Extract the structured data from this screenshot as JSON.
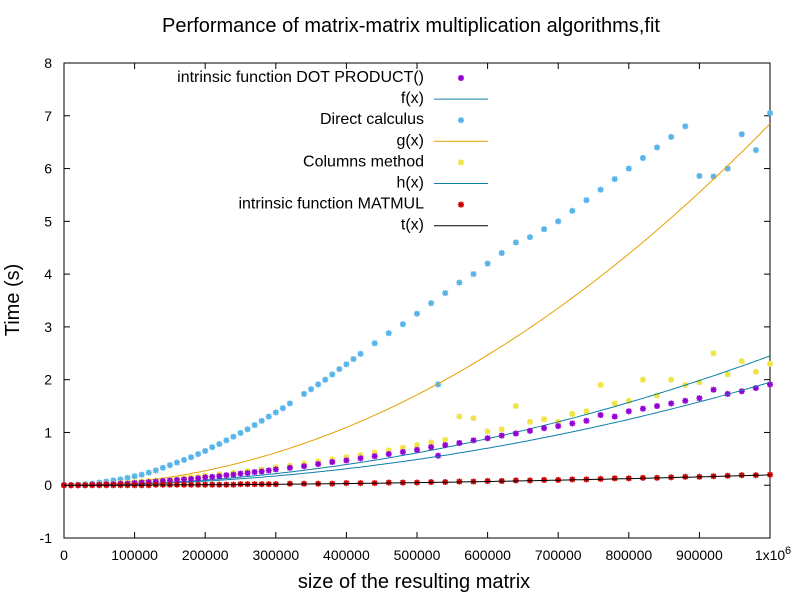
{
  "chart_data": {
    "type": "scatter",
    "title": "Performance of matrix-matrix multiplication algorithms,fit",
    "xlabel": "size of the resulting matrix",
    "ylabel": "Time (s)",
    "xlim": [
      0,
      1000000
    ],
    "ylim": [
      -1,
      8
    ],
    "x_ticks": [
      0,
      100000,
      200000,
      300000,
      400000,
      500000,
      600000,
      700000,
      800000,
      900000,
      1000000
    ],
    "x_tick_labels": [
      "0",
      "100000",
      "200000",
      "300000",
      "400000",
      "500000",
      "600000",
      "700000",
      "800000",
      "900000",
      "1x10"
    ],
    "x_exponent_label": "6",
    "y_ticks": [
      -1,
      0,
      1,
      2,
      3,
      4,
      5,
      6,
      7,
      8
    ],
    "y_tick_labels": [
      "-1",
      "0",
      "1",
      "2",
      "3",
      "4",
      "5",
      "6",
      "7",
      "8"
    ],
    "grid": false,
    "legend_position": "top-left",
    "series": [
      {
        "name": "intrinsic function DOT PRODUCT()",
        "kind": "points",
        "color": "#9400d3",
        "x": [
          0,
          10000,
          20000,
          30000,
          40000,
          50000,
          60000,
          70000,
          80000,
          90000,
          100000,
          110000,
          120000,
          130000,
          140000,
          150000,
          160000,
          170000,
          180000,
          190000,
          200000,
          210000,
          220000,
          230000,
          240000,
          250000,
          260000,
          270000,
          280000,
          290000,
          300000,
          320000,
          340000,
          360000,
          380000,
          400000,
          420000,
          440000,
          460000,
          480000,
          500000,
          520000,
          530000,
          540000,
          560000,
          580000,
          600000,
          620000,
          640000,
          660000,
          680000,
          700000,
          720000,
          740000,
          760000,
          780000,
          800000,
          820000,
          840000,
          860000,
          880000,
          900000,
          920000,
          940000,
          960000,
          980000,
          1000000
        ],
        "y": [
          0.0,
          0.0,
          0.0,
          0.0,
          0.01,
          0.01,
          0.02,
          0.02,
          0.03,
          0.03,
          0.04,
          0.05,
          0.06,
          0.07,
          0.08,
          0.09,
          0.1,
          0.11,
          0.12,
          0.13,
          0.15,
          0.16,
          0.17,
          0.19,
          0.2,
          0.22,
          0.23,
          0.25,
          0.26,
          0.28,
          0.3,
          0.33,
          0.36,
          0.4,
          0.44,
          0.47,
          0.51,
          0.55,
          0.59,
          0.63,
          0.67,
          0.72,
          0.56,
          0.76,
          0.8,
          0.85,
          0.89,
          0.94,
          0.98,
          1.03,
          1.08,
          1.12,
          1.17,
          1.22,
          1.33,
          1.3,
          1.4,
          1.45,
          1.5,
          1.55,
          1.6,
          1.65,
          1.81,
          1.73,
          1.78,
          1.84,
          1.91
        ]
      },
      {
        "name": "f(x)",
        "kind": "curve",
        "color": "#0d80a8",
        "a": 1.95e-12
      },
      {
        "name": "Direct calculus",
        "kind": "points",
        "color": "#56b4e9",
        "x": [
          0,
          10000,
          20000,
          30000,
          40000,
          50000,
          60000,
          70000,
          80000,
          90000,
          100000,
          110000,
          120000,
          130000,
          140000,
          150000,
          160000,
          170000,
          180000,
          190000,
          200000,
          210000,
          220000,
          230000,
          240000,
          250000,
          260000,
          270000,
          280000,
          290000,
          300000,
          310000,
          320000,
          340000,
          350000,
          360000,
          370000,
          380000,
          390000,
          400000,
          410000,
          420000,
          440000,
          460000,
          480000,
          500000,
          520000,
          530000,
          540000,
          560000,
          580000,
          600000,
          620000,
          640000,
          660000,
          680000,
          700000,
          720000,
          740000,
          760000,
          780000,
          800000,
          820000,
          840000,
          860000,
          880000,
          900000,
          920000,
          940000,
          960000,
          980000,
          1000000
        ],
        "y": [
          0.0,
          0.0,
          0.01,
          0.02,
          0.03,
          0.05,
          0.07,
          0.09,
          0.11,
          0.14,
          0.17,
          0.2,
          0.24,
          0.28,
          0.33,
          0.38,
          0.43,
          0.48,
          0.53,
          0.59,
          0.65,
          0.72,
          0.78,
          0.85,
          0.92,
          0.99,
          1.06,
          1.14,
          1.22,
          1.3,
          1.38,
          1.46,
          1.55,
          1.73,
          1.82,
          1.91,
          2.0,
          2.1,
          2.2,
          2.29,
          2.39,
          2.49,
          2.69,
          2.88,
          3.05,
          3.25,
          3.45,
          1.91,
          3.64,
          3.84,
          4.0,
          4.2,
          4.4,
          4.6,
          4.7,
          4.85,
          5.0,
          5.2,
          5.4,
          5.6,
          5.8,
          6.0,
          6.2,
          6.4,
          6.6,
          6.8,
          5.86,
          5.85,
          6.0,
          6.65,
          6.35,
          7.05
        ]
      },
      {
        "name": "g(x)",
        "kind": "curve",
        "color": "#e69f00",
        "a": 6.85e-12
      },
      {
        "name": "Columns method",
        "kind": "points",
        "color": "#f0e442",
        "x": [
          0,
          10000,
          20000,
          30000,
          40000,
          50000,
          60000,
          70000,
          80000,
          90000,
          100000,
          110000,
          120000,
          130000,
          140000,
          150000,
          160000,
          170000,
          180000,
          190000,
          200000,
          220000,
          240000,
          260000,
          280000,
          300000,
          320000,
          340000,
          360000,
          380000,
          400000,
          420000,
          440000,
          460000,
          480000,
          500000,
          520000,
          540000,
          560000,
          580000,
          600000,
          620000,
          640000,
          660000,
          680000,
          700000,
          720000,
          740000,
          760000,
          780000,
          800000,
          820000,
          840000,
          860000,
          880000,
          900000,
          920000,
          940000,
          960000,
          980000,
          1000000
        ],
        "y": [
          0.0,
          0.0,
          0.0,
          0.01,
          0.01,
          0.02,
          0.03,
          0.03,
          0.04,
          0.05,
          0.06,
          0.07,
          0.08,
          0.09,
          0.1,
          0.11,
          0.12,
          0.14,
          0.15,
          0.16,
          0.18,
          0.21,
          0.24,
          0.27,
          0.3,
          0.34,
          0.37,
          0.41,
          0.45,
          0.49,
          0.53,
          0.57,
          0.62,
          0.66,
          0.71,
          0.76,
          0.81,
          0.86,
          1.3,
          1.27,
          1.02,
          1.06,
          1.5,
          1.2,
          1.25,
          1.2,
          1.35,
          1.4,
          1.9,
          1.55,
          1.6,
          2.0,
          1.7,
          2.0,
          1.9,
          1.95,
          2.5,
          2.1,
          2.35,
          2.15,
          2.3
        ]
      },
      {
        "name": "h(x)",
        "kind": "curve",
        "color": "#0d80a8",
        "a": 2.45e-12
      },
      {
        "name": "intrinsic function MATMUL",
        "kind": "points",
        "color": "#cc0000",
        "x": [
          0,
          10000,
          20000,
          30000,
          40000,
          50000,
          60000,
          70000,
          80000,
          90000,
          100000,
          110000,
          120000,
          130000,
          140000,
          150000,
          160000,
          170000,
          180000,
          190000,
          200000,
          210000,
          220000,
          230000,
          240000,
          250000,
          260000,
          270000,
          280000,
          290000,
          300000,
          320000,
          340000,
          360000,
          380000,
          400000,
          420000,
          440000,
          460000,
          480000,
          500000,
          520000,
          540000,
          560000,
          580000,
          600000,
          620000,
          640000,
          660000,
          680000,
          700000,
          720000,
          740000,
          760000,
          780000,
          800000,
          820000,
          840000,
          860000,
          880000,
          900000,
          920000,
          940000,
          960000,
          980000,
          1000000
        ],
        "y": [
          0.0,
          0.0,
          0.0,
          0.0,
          0.0,
          0.0,
          0.0,
          0.0,
          0.0,
          0.0,
          0.0,
          0.0,
          0.0,
          0.01,
          0.01,
          0.01,
          0.01,
          0.01,
          0.01,
          0.01,
          0.01,
          0.01,
          0.01,
          0.01,
          0.01,
          0.02,
          0.02,
          0.02,
          0.02,
          0.02,
          0.02,
          0.03,
          0.03,
          0.03,
          0.03,
          0.04,
          0.04,
          0.04,
          0.05,
          0.05,
          0.05,
          0.06,
          0.06,
          0.07,
          0.07,
          0.08,
          0.08,
          0.09,
          0.09,
          0.1,
          0.1,
          0.11,
          0.11,
          0.12,
          0.13,
          0.13,
          0.14,
          0.14,
          0.15,
          0.16,
          0.16,
          0.17,
          0.18,
          0.19,
          0.19,
          0.2
        ]
      },
      {
        "name": "t(x)",
        "kind": "curve",
        "color": "#000000",
        "a": 1.95e-13
      }
    ]
  }
}
